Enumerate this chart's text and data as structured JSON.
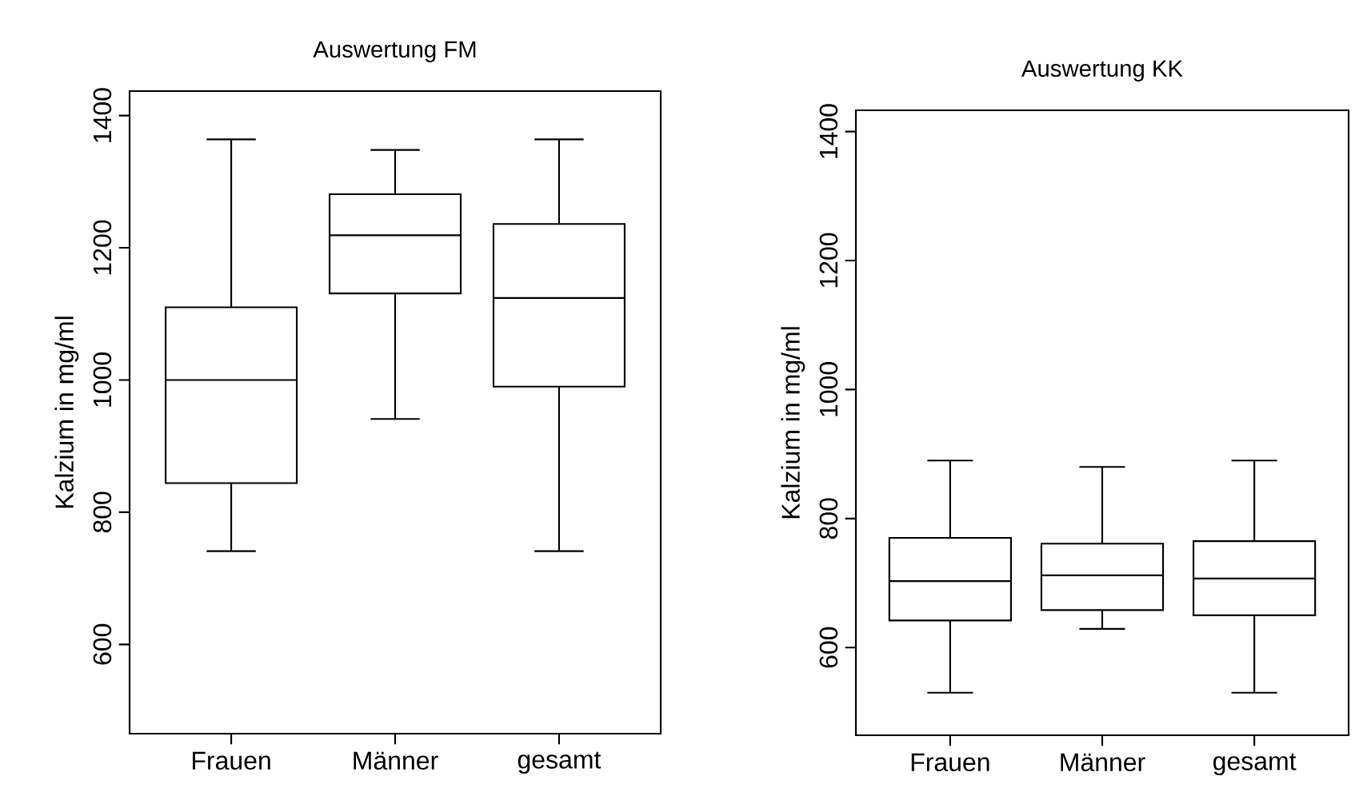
{
  "chart_data": [
    {
      "type": "box",
      "title": "Auswertung FM",
      "ylabel": "Kalzium in mg/ml",
      "categories": [
        "Frauen",
        "Männer",
        "gesamt"
      ],
      "boxes": [
        {
          "low": 741,
          "q1": 844,
          "median": 1000,
          "q3": 1110,
          "high": 1364
        },
        {
          "low": 941,
          "q1": 1131,
          "median": 1219,
          "q3": 1281,
          "high": 1348
        },
        {
          "low": 741,
          "q1": 990,
          "median": 1124,
          "q3": 1236,
          "high": 1364
        }
      ],
      "ylim": [
        465,
        1437
      ],
      "yticks": [
        600,
        800,
        1000,
        1200,
        1400
      ],
      "grid": false
    },
    {
      "type": "box",
      "title": "Auswertung KK",
      "ylabel": "Kalzium in mg/ml",
      "categories": [
        "Frauen",
        "Männer",
        "gesamt"
      ],
      "boxes": [
        {
          "low": 530,
          "q1": 642,
          "median": 703,
          "q3": 770,
          "high": 890
        },
        {
          "low": 629,
          "q1": 658,
          "median": 712,
          "q3": 761,
          "high": 880
        },
        {
          "low": 530,
          "q1": 650,
          "median": 707,
          "q3": 765,
          "high": 890
        }
      ],
      "ylim": [
        464,
        1433
      ],
      "yticks": [
        600,
        800,
        1000,
        1200,
        1400
      ],
      "grid": false
    }
  ]
}
